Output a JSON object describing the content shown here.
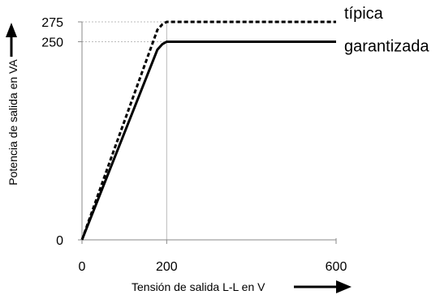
{
  "chart_data": {
    "type": "line",
    "xlabel": "Tensión de salida L-L en V",
    "ylabel": "Potencia de salida en VA",
    "xlim": [
      0,
      600
    ],
    "ylim": [
      0,
      275
    ],
    "xticks": [
      "0",
      "200",
      "600"
    ],
    "yticks": [
      "0",
      "250",
      "275"
    ],
    "series": [
      {
        "name": "típica",
        "style": "dashed",
        "color": "#000000",
        "x": [
          0,
          70,
          178,
          190,
          200,
          600
        ],
        "y": [
          0,
          105,
          265,
          272,
          275,
          275
        ]
      },
      {
        "name": "garantizada",
        "style": "solid",
        "color": "#000000",
        "x": [
          0,
          178,
          190,
          200,
          600
        ],
        "y": [
          0,
          240,
          247,
          250,
          250
        ]
      }
    ],
    "reference_lines": [
      {
        "axis": "x",
        "value": 200,
        "color": "#bbbbbb"
      },
      {
        "axis": "y",
        "value": 250,
        "color": "#bbbbbb"
      },
      {
        "axis": "y",
        "value": 275,
        "color": "#bbbbbb"
      }
    ],
    "grid": false,
    "legend": "right, inline labels"
  }
}
